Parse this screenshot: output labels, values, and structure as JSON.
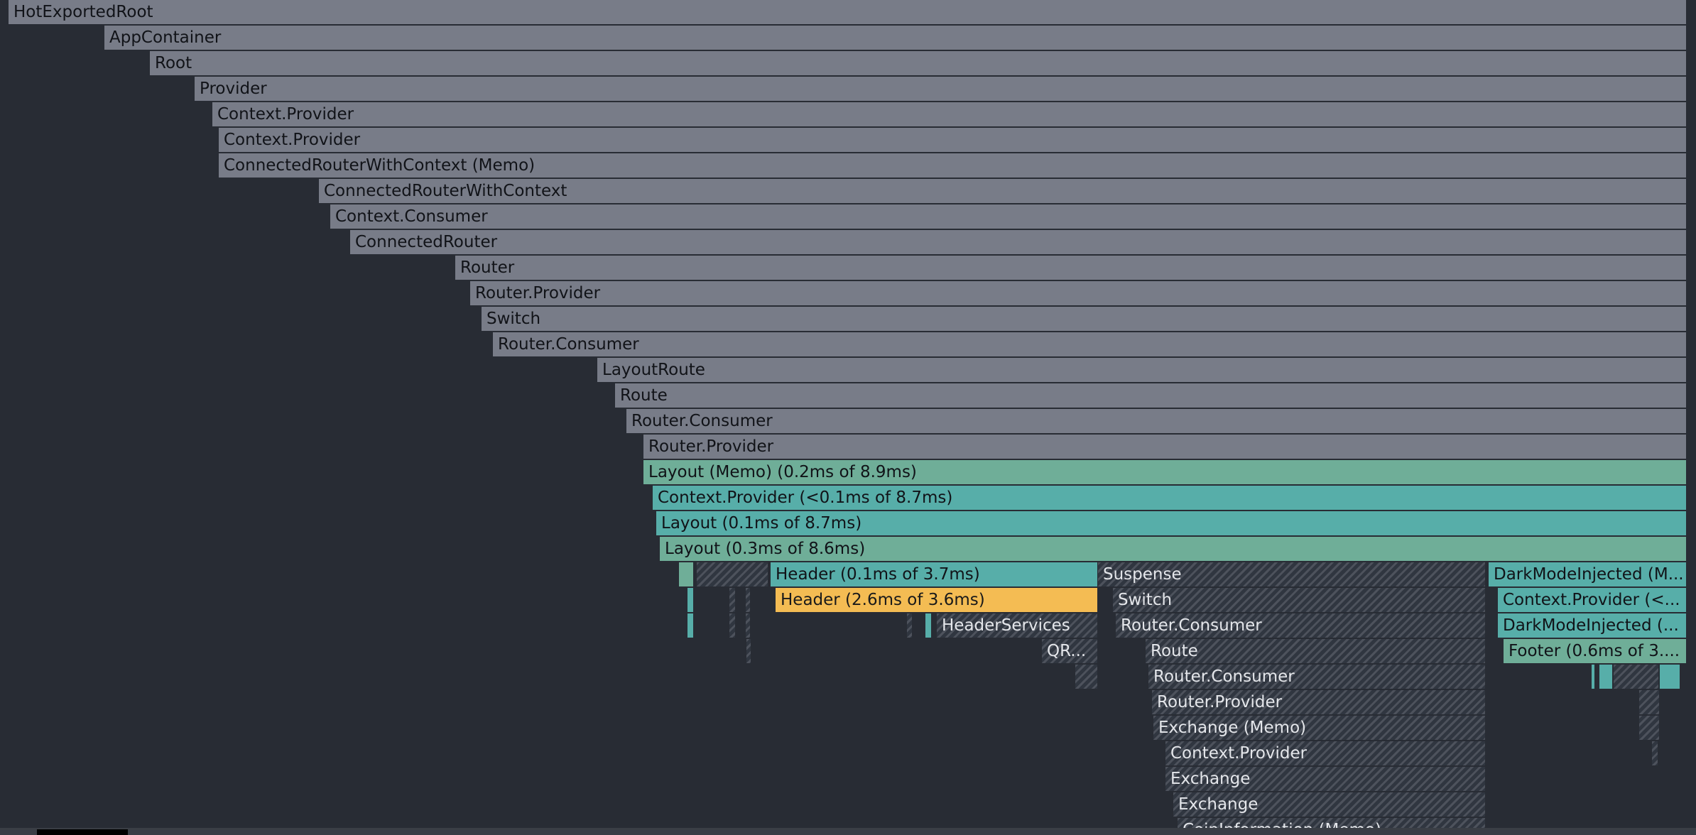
{
  "colors": {
    "background": "#282c34",
    "unchanged": "#787c88",
    "rendered_green": "#6fae98",
    "rendered_teal": "#57aea9",
    "slow": "#f4bc53",
    "hatched": "#303640"
  },
  "flamegraph": {
    "bars": [
      {
        "label": "HotExportedRoot",
        "color": "gray"
      },
      {
        "label": "AppContainer",
        "color": "gray"
      },
      {
        "label": "Root",
        "color": "gray"
      },
      {
        "label": "Provider",
        "color": "gray"
      },
      {
        "label": "Context.Provider",
        "color": "gray"
      },
      {
        "label": "Context.Provider",
        "color": "gray"
      },
      {
        "label": "ConnectedRouterWithContext (Memo)",
        "color": "gray"
      },
      {
        "label": "ConnectedRouterWithContext",
        "color": "gray"
      },
      {
        "label": "Context.Consumer",
        "color": "gray"
      },
      {
        "label": "ConnectedRouter",
        "color": "gray"
      },
      {
        "label": "Router",
        "color": "gray"
      },
      {
        "label": "Router.Provider",
        "color": "gray"
      },
      {
        "label": "Switch",
        "color": "gray"
      },
      {
        "label": "Router.Consumer",
        "color": "gray"
      },
      {
        "label": "LayoutRoute",
        "color": "gray"
      },
      {
        "label": "Route",
        "color": "gray"
      },
      {
        "label": "Router.Consumer",
        "color": "gray"
      },
      {
        "label": "Router.Provider",
        "color": "gray"
      },
      {
        "label": "Layout (Memo) (0.2ms of 8.9ms)",
        "color": "green"
      },
      {
        "label": "Context.Provider (<0.1ms of 8.7ms)",
        "color": "teal"
      },
      {
        "label": "Layout (0.1ms of 8.7ms)",
        "color": "teal"
      },
      {
        "label": "Layout (0.3ms of 8.6ms)",
        "color": "green"
      },
      {
        "label": "",
        "color": "green"
      },
      {
        "label": "",
        "color": "hatch"
      },
      {
        "label": "Header (0.1ms of 3.7ms)",
        "color": "teal"
      },
      {
        "label": "Suspense",
        "color": "hatch"
      },
      {
        "label": "DarkModeInjected (M...",
        "color": "teal"
      },
      {
        "label": "",
        "color": "teal"
      },
      {
        "label": "",
        "color": "hatch"
      },
      {
        "label": "",
        "color": "hatch"
      },
      {
        "label": "Header (2.6ms of 3.6ms)",
        "color": "orange"
      },
      {
        "label": "Switch",
        "color": "hatch"
      },
      {
        "label": "Context.Provider (<...",
        "color": "teal"
      },
      {
        "label": "",
        "color": "teal"
      },
      {
        "label": "",
        "color": "hatch"
      },
      {
        "label": "",
        "color": "hatch"
      },
      {
        "label": "",
        "color": "hatch"
      },
      {
        "label": "",
        "color": "teal"
      },
      {
        "label": "HeaderServices",
        "color": "hatch"
      },
      {
        "label": "Router.Consumer",
        "color": "hatch"
      },
      {
        "label": "DarkModeInjected (...",
        "color": "teal"
      },
      {
        "label": "",
        "color": "hatch"
      },
      {
        "label": "QR...",
        "color": "hatch"
      },
      {
        "label": "Route",
        "color": "hatch"
      },
      {
        "label": "Footer (0.6ms of 3....",
        "color": "green"
      },
      {
        "label": "",
        "color": "hatch"
      },
      {
        "label": "Router.Consumer",
        "color": "hatch"
      },
      {
        "label": "",
        "color": "teal"
      },
      {
        "label": "",
        "color": "teal"
      },
      {
        "label": "",
        "color": "hatch"
      },
      {
        "label": "",
        "color": "teal"
      },
      {
        "label": "Router.Provider",
        "color": "hatch"
      },
      {
        "label": "",
        "color": "hatch"
      },
      {
        "label": "Exchange (Memo)",
        "color": "hatch"
      },
      {
        "label": "",
        "color": "hatch"
      },
      {
        "label": "Context.Provider",
        "color": "hatch"
      },
      {
        "label": "",
        "color": "hatch"
      },
      {
        "label": "Exchange",
        "color": "hatch"
      },
      {
        "label": "Exchange",
        "color": "hatch"
      },
      {
        "label": "CoinInformation (Memo)",
        "color": "hatch"
      }
    ]
  }
}
